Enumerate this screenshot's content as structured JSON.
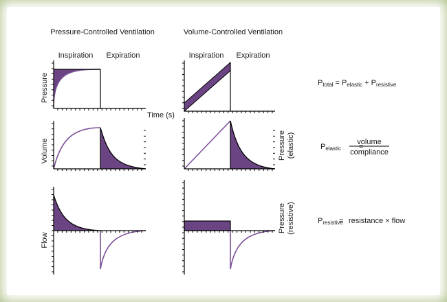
{
  "colors": {
    "fill": "#6b4483",
    "curve": "#7b4f98",
    "axis": "#000000",
    "frame": "#a9bd82"
  },
  "headings": {
    "pcv": "Pressure-Controlled Ventilation",
    "vcv": "Volume-Controlled Ventilation"
  },
  "phases": {
    "inspiration": "Inspiration",
    "expiration": "Expiration"
  },
  "axis_labels": {
    "pressure": "Pressure",
    "time": "Time (s)",
    "volume": "Volume",
    "flow": "Flow",
    "pressure2": "Pressure",
    "elastic": "(elastic)",
    "resistive": "(resistive)"
  },
  "equations": {
    "total": {
      "lhs_sym": "P",
      "lhs_sub": "total",
      "eq": " = ",
      "t1_sym": "P",
      "t1_sub": "elastic",
      "plus": " + ",
      "t2_sym": "P",
      "t2_sub": "resistive"
    },
    "elastic": {
      "lhs_sym": "P",
      "lhs_sub": "elastic",
      "eq": "=",
      "numerator": "volume",
      "denominator": "compliance"
    },
    "resistive": {
      "lhs_sym": "P",
      "lhs_sub": "resistive",
      "eq": "=",
      "rhs": "resistance × flow"
    }
  }
}
